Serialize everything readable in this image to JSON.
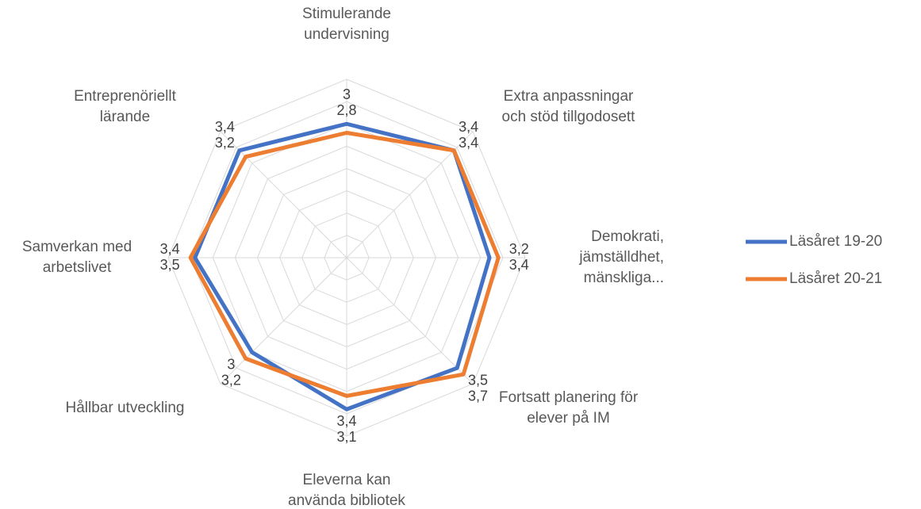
{
  "chart_data": {
    "type": "radar",
    "categories": [
      "Stimulerande undervisning",
      "Extra anpassningar och stöd tillgodosett",
      "Demokrati, jämställdhet, mänskliga...",
      "Fortsatt planering för elever på IM",
      "Eleverna kan använda bibliotek",
      "Hållbar utveckling",
      "Samverkan med arbetslivet",
      "Entreprenöriellt lärande"
    ],
    "series": [
      {
        "name": "Läsåret 19-20",
        "color": "#4472c4",
        "values": [
          3,
          3.4,
          3.2,
          3.5,
          3.4,
          3,
          3.4,
          3.4
        ],
        "value_labels": [
          "3",
          "3,4",
          "3,2",
          "3,5",
          "3,4",
          "3",
          "3,4",
          "3,4"
        ]
      },
      {
        "name": "Läsåret 20-21",
        "color": "#ed7d31",
        "values": [
          2.8,
          3.4,
          3.4,
          3.7,
          3.1,
          3.2,
          3.5,
          3.2
        ],
        "value_labels": [
          "2,8",
          "3,4",
          "3,4",
          "3,7",
          "3,1",
          "3,2",
          "3,5",
          "3,2"
        ]
      }
    ],
    "ylim": [
      0,
      4
    ],
    "yticks": [
      0,
      0.5,
      1,
      1.5,
      2,
      2.5,
      3,
      3.5,
      4
    ],
    "grid": true,
    "legend": "right"
  }
}
